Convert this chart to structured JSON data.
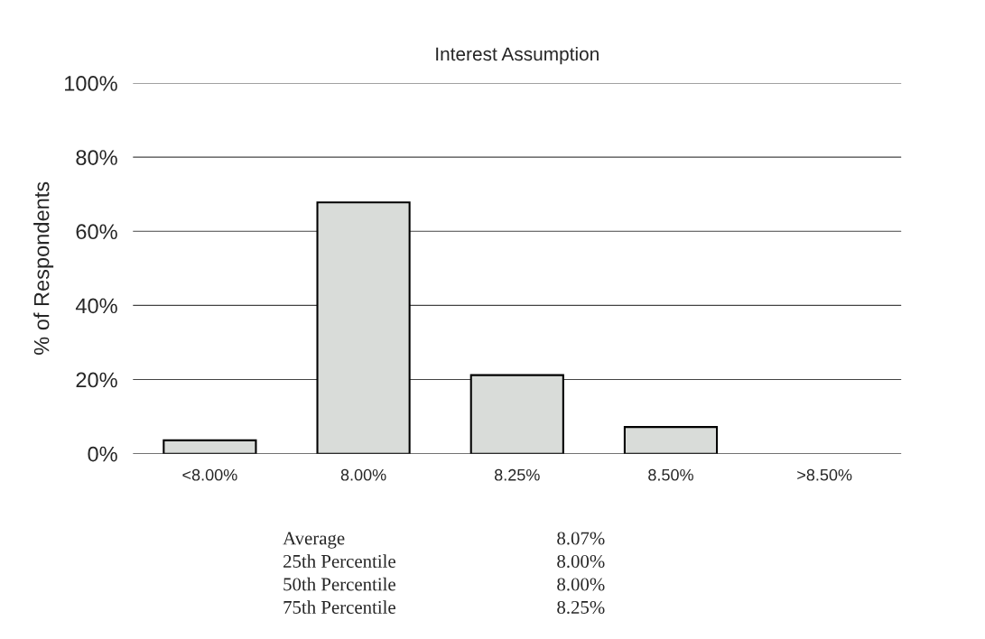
{
  "chart_data": {
    "type": "bar",
    "title": "Interest Assumption",
    "ylabel": "% of Respondents",
    "categories": [
      "<8.00%",
      "8.00%",
      "8.25%",
      "8.50%",
      ">8.50%"
    ],
    "values": [
      3.6,
      67.8,
      21.2,
      7.2,
      0
    ],
    "color": "#d9dcd9",
    "ylim": [
      0,
      100
    ],
    "yticks": [
      {
        "value": 0,
        "label": "0%"
      },
      {
        "value": 20,
        "label": "20%"
      },
      {
        "value": 40,
        "label": "40%"
      },
      {
        "value": 60,
        "label": "60%"
      },
      {
        "value": 80,
        "label": "80%"
      },
      {
        "value": 100,
        "label": "100%"
      }
    ],
    "grid": "y",
    "annotations": [
      "Average",
      "8.07%",
      "25th Percentile",
      "8.00%",
      "50th Percentile",
      "8.00%",
      "75th Percentile",
      "8.25%"
    ]
  }
}
